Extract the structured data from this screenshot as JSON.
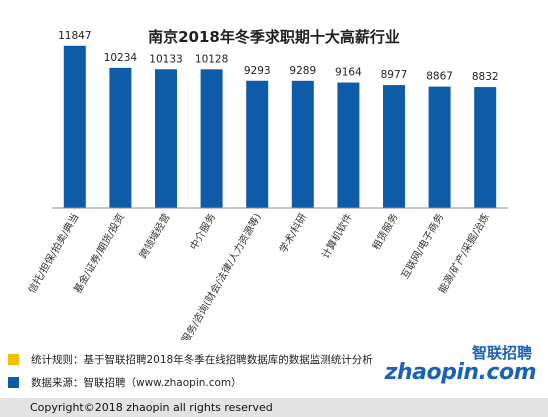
{
  "chart_data": {
    "type": "bar",
    "title": "南京2018年冬季求职期十大高薪行业",
    "categories": [
      "信托/担保/拍卖/典当",
      "基金/证券/期货/投资",
      "跨领域经营",
      "中介服务",
      "专业服务/咨询(财会/法律/人力资源等)",
      "学术/科研",
      "计算机软件",
      "租赁服务",
      "互联网/电子商务",
      "能源/矿产/采掘/冶炼"
    ],
    "values": [
      11847,
      10234,
      10133,
      10128,
      9293,
      9289,
      9164,
      8977,
      8867,
      8832
    ],
    "ylim": [
      0,
      13000
    ],
    "bar_color": "#0e5ca8",
    "grid": false,
    "legend": "none"
  },
  "notes": [
    {
      "text": "统计规则：基于智联招聘2018年冬季在线招聘数据库的数据监测统计分析",
      "color": "#f2c200"
    },
    {
      "text": "数据来源：智联招聘（www.zhaopin.com）",
      "color": "#0e5ca8"
    }
  ],
  "logo": {
    "cn": "智联招聘",
    "en": "zhaopin.com"
  },
  "copyright": "Copyright©2018 zhaopin all rights reserved"
}
